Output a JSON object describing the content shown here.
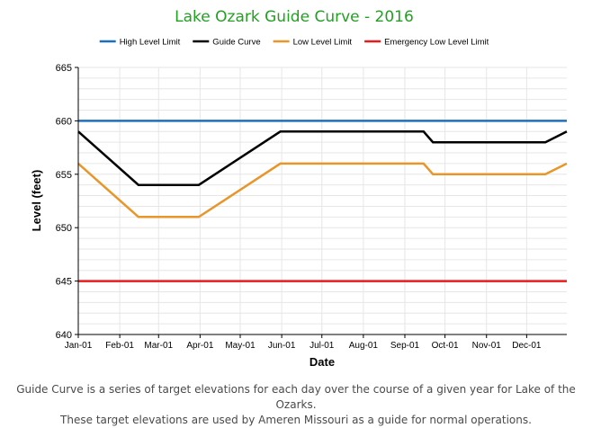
{
  "chart_data": {
    "type": "line",
    "title": "Lake Ozark Guide Curve - 2016",
    "xlabel": "Date",
    "ylabel": "Level (feet)",
    "ylim": [
      640,
      665
    ],
    "y_ticks": [
      "640",
      "645",
      "650",
      "655",
      "660",
      "665"
    ],
    "x_range": [
      "2016-01-01",
      "2016-12-31"
    ],
    "x_ticks": [
      {
        "date": "2016-01-01",
        "label": "Jan-01"
      },
      {
        "date": "2016-02-01",
        "label": "Feb-01"
      },
      {
        "date": "2016-03-01",
        "label": "Mar-01"
      },
      {
        "date": "2016-04-01",
        "label": "Apr-01"
      },
      {
        "date": "2016-05-01",
        "label": "May-01"
      },
      {
        "date": "2016-06-01",
        "label": "Jun-01"
      },
      {
        "date": "2016-07-01",
        "label": "Jul-01"
      },
      {
        "date": "2016-08-01",
        "label": "Aug-01"
      },
      {
        "date": "2016-09-01",
        "label": "Sep-01"
      },
      {
        "date": "2016-10-01",
        "label": "Oct-01"
      },
      {
        "date": "2016-11-01",
        "label": "Nov-01"
      },
      {
        "date": "2016-12-01",
        "label": "Dec-01"
      }
    ],
    "grid": true,
    "legend_position": "top",
    "series": [
      {
        "name": "High Level Limit",
        "color": "#1f6fbf",
        "points": [
          [
            "2016-01-01",
            660
          ],
          [
            "2016-12-31",
            660
          ]
        ]
      },
      {
        "name": "Guide Curve",
        "color": "#000000",
        "points": [
          [
            "2016-01-01",
            659
          ],
          [
            "2016-02-15",
            654
          ],
          [
            "2016-03-31",
            654
          ],
          [
            "2016-05-31",
            659
          ],
          [
            "2016-09-15",
            659
          ],
          [
            "2016-09-22",
            658
          ],
          [
            "2016-12-15",
            658
          ],
          [
            "2016-12-31",
            659
          ]
        ]
      },
      {
        "name": "Low Level Limit",
        "color": "#e8962a",
        "points": [
          [
            "2016-01-01",
            656
          ],
          [
            "2016-02-15",
            651
          ],
          [
            "2016-03-31",
            651
          ],
          [
            "2016-05-31",
            656
          ],
          [
            "2016-09-15",
            656
          ],
          [
            "2016-09-22",
            655
          ],
          [
            "2016-12-15",
            655
          ],
          [
            "2016-12-31",
            656
          ]
        ]
      },
      {
        "name": "Emergency Low Level Limit",
        "color": "#e81c1c",
        "points": [
          [
            "2016-01-01",
            645
          ],
          [
            "2016-12-31",
            645
          ]
        ]
      }
    ]
  },
  "caption": {
    "line1": "Guide Curve is a series of target elevations for each day over the course of a given year for Lake of the Ozarks.",
    "line2": "These target elevations are used by Ameren Missouri as a guide for normal operations."
  }
}
